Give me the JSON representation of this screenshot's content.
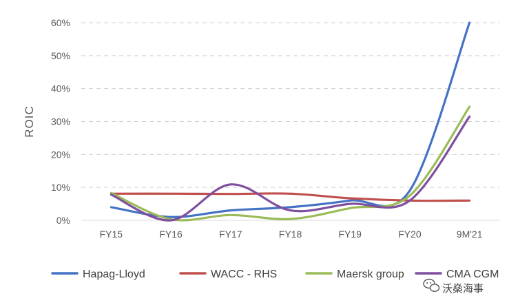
{
  "chart_data": {
    "type": "line",
    "categories": [
      "FY15",
      "FY16",
      "FY17",
      "FY18",
      "FY19",
      "FY20",
      "9M'21"
    ],
    "ylabel": "ROIC",
    "ylim": [
      0,
      60
    ],
    "yticks": [
      "0%",
      "10%",
      "20%",
      "30%",
      "40%",
      "50%",
      "60%"
    ],
    "grid": true,
    "legend_position": "bottom",
    "series": [
      {
        "name": "Hapag-Lloyd",
        "color": "#4472C4",
        "values": [
          4,
          1,
          3,
          4,
          6,
          9,
          60
        ]
      },
      {
        "name": "WACC - RHS",
        "color": "#C0504D",
        "values": [
          8.1,
          8.1,
          8,
          8.1,
          6.7,
          6,
          6
        ]
      },
      {
        "name": "Maersk group",
        "color": "#9BBB59",
        "values": [
          8.3,
          0.3,
          1.6,
          0.4,
          3.7,
          7.5,
          34.5
        ]
      },
      {
        "name": "CMA CGM",
        "color": "#7F4F9F",
        "values": [
          7.8,
          0,
          10.9,
          3,
          5,
          6,
          31.5
        ]
      }
    ]
  },
  "watermark": {
    "text": "沃燊海事",
    "icon": "wechat-icon"
  }
}
